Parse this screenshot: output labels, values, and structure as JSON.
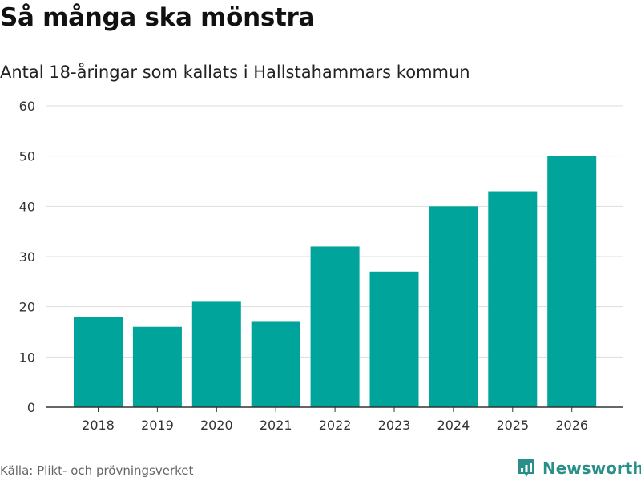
{
  "header": {
    "title": "Så många ska mönstra",
    "subtitle": "Antal 18-åringar som kallats i Hallstahammars kommun"
  },
  "footer": {
    "source": "Källa: Plikt- och prövningsverket",
    "brand": "Newsworthy"
  },
  "colors": {
    "bar": "#00a49a",
    "grid": "#dddddd",
    "axis": "#333333",
    "brand": "#2a8f88"
  },
  "chart_data": {
    "type": "bar",
    "title": "Så många ska mönstra",
    "subtitle": "Antal 18-åringar som kallats i Hallstahammars kommun",
    "xlabel": "",
    "ylabel": "",
    "categories": [
      "2018",
      "2019",
      "2020",
      "2021",
      "2022",
      "2023",
      "2024",
      "2025",
      "2026"
    ],
    "values": [
      18,
      16,
      21,
      17,
      32,
      27,
      40,
      43,
      50
    ],
    "ylim": [
      0,
      60
    ],
    "yticks": [
      0,
      10,
      20,
      30,
      40,
      50,
      60
    ],
    "grid": true,
    "legend": "none"
  }
}
